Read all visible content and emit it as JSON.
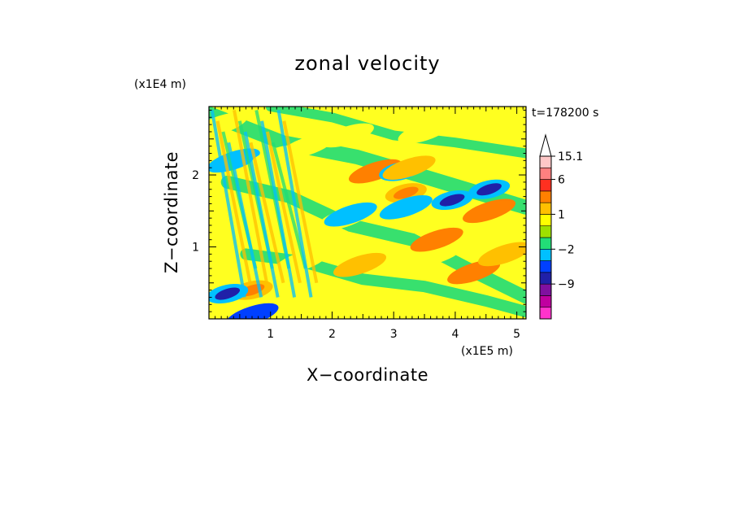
{
  "chart_data": {
    "type": "heatmap",
    "title": "zonal velocity",
    "xlabel": "X−coordinate",
    "ylabel": "Z−coordinate",
    "x_unit": "(x1E5 m)",
    "y_unit": "(x1E4 m)",
    "time_label": "t=178200 s",
    "xlim": [
      0,
      5.15
    ],
    "ylim": [
      0,
      2.95
    ],
    "x_ticks": [
      1,
      2,
      3,
      4,
      5
    ],
    "x_tick_labels": [
      "1",
      "2",
      "3",
      "4",
      "5"
    ],
    "y_ticks": [
      1,
      2
    ],
    "y_tick_labels": [
      "1",
      "2"
    ],
    "colorbar": {
      "colors": [
        "#ff33cc",
        "#c000a0",
        "#8010a0",
        "#2020a8",
        "#0040ff",
        "#00c0ff",
        "#22dd77",
        "#9ee000",
        "#ffff00",
        "#ffc000",
        "#ff8000",
        "#ff3020",
        "#ff8080",
        "#ffc8c8"
      ],
      "labels": [
        {
          "text": "15.1",
          "index": 13
        },
        {
          "text": "6",
          "index": 11
        },
        {
          "text": "1",
          "index": 8
        },
        {
          "text": "−2",
          "index": 5
        },
        {
          "text": "−9",
          "index": 2
        }
      ],
      "extend_top": true
    },
    "background_color": "#ffff20",
    "features": [
      {
        "x": 0.2,
        "z": 2.7,
        "value": 1
      },
      {
        "x": 0.4,
        "z": 2.2,
        "value": -2
      },
      {
        "x": 2.7,
        "z": 2.05,
        "value": 3
      },
      {
        "x": 3.1,
        "z": 2.05,
        "value": -6
      },
      {
        "x": 3.25,
        "z": 2.1,
        "value": 1.5
      },
      {
        "x": 3.2,
        "z": 1.75,
        "value": 5
      },
      {
        "x": 3.95,
        "z": 1.65,
        "value": -6
      },
      {
        "x": 4.55,
        "z": 1.8,
        "value": -6
      },
      {
        "x": 4.55,
        "z": 1.5,
        "value": 3.5
      },
      {
        "x": 2.25,
        "z": 2.55,
        "value": 1
      },
      {
        "x": 3.5,
        "z": 2.6,
        "value": 0.3
      },
      {
        "x": 0.7,
        "z": 0.4,
        "value": 5
      },
      {
        "x": 0.3,
        "z": 0.35,
        "value": -6
      },
      {
        "x": 0.7,
        "z": 0.05,
        "value": -4
      },
      {
        "x": 2.2,
        "z": 1.4,
        "value": 0.3
      },
      {
        "x": 1.5,
        "z": 0.8,
        "value": 0.3
      },
      {
        "x": 3.7,
        "z": 0.9,
        "value": 0.3
      },
      {
        "x": 3.1,
        "z": 0.15,
        "value": 0.3
      },
      {
        "x": 2.3,
        "z": 1.45,
        "value": -1.5
      },
      {
        "x": 3.2,
        "z": 1.55,
        "value": -1.5
      },
      {
        "x": 3.7,
        "z": 1.1,
        "value": 3
      },
      {
        "x": 4.3,
        "z": 0.65,
        "value": 3
      },
      {
        "x": 2.45,
        "z": 0.75,
        "value": 2
      },
      {
        "x": 1.1,
        "z": 2.25,
        "value": 1
      },
      {
        "x": 1.6,
        "z": 2.4,
        "value": 0.3
      },
      {
        "x": 4.9,
        "z": 2.8,
        "value": 0.3
      },
      {
        "x": 4.8,
        "z": 0.9,
        "value": 2
      }
    ]
  }
}
